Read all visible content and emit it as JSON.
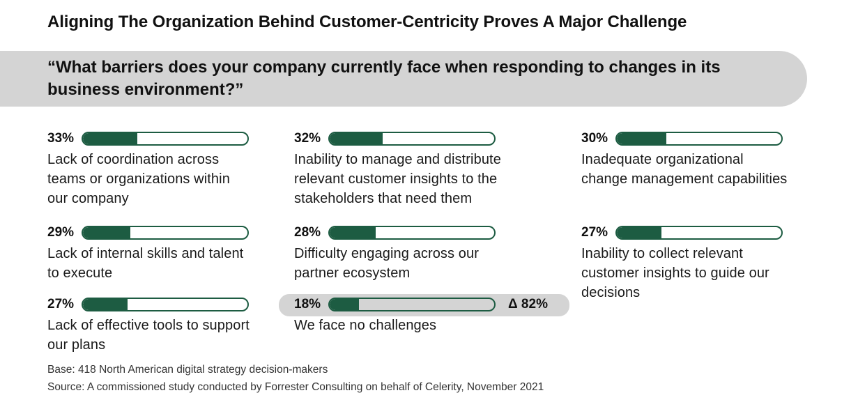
{
  "title": "Aligning The Organization Behind Customer-Centricity Proves A Major Challenge",
  "question": "“What barriers does your company currently face when responding to changes in its business environment?”",
  "chart_data": {
    "type": "bar",
    "categories": [
      "Lack of coordination across teams or organizations within our company",
      "Lack of internal skills and talent to execute",
      "Lack of effective tools to support our plans",
      "Inability to manage and distribute relevant customer insights to the stakeholders that need them",
      "Difficulty engaging across our partner ecosystem",
      "We face no challenges",
      "Inadequate organizational change management capabilities",
      "Inability to collect relevant customer insights to guide our decisions"
    ],
    "values": [
      33,
      29,
      27,
      32,
      28,
      18,
      30,
      27
    ],
    "labels": [
      "33%",
      "29%",
      "27%",
      "32%",
      "28%",
      "18%",
      "30%",
      "27%"
    ],
    "ylim": [
      0,
      100
    ],
    "annotations": [
      {
        "category": "We face no challenges",
        "text": "Δ 82%"
      }
    ],
    "bar_color": "#1d5c42"
  },
  "footer": {
    "base": "Base: 418 North American digital strategy decision-makers",
    "source": "Source: A commissioned study conducted by Forrester Consulting on behalf of Celerity, November 2021"
  }
}
